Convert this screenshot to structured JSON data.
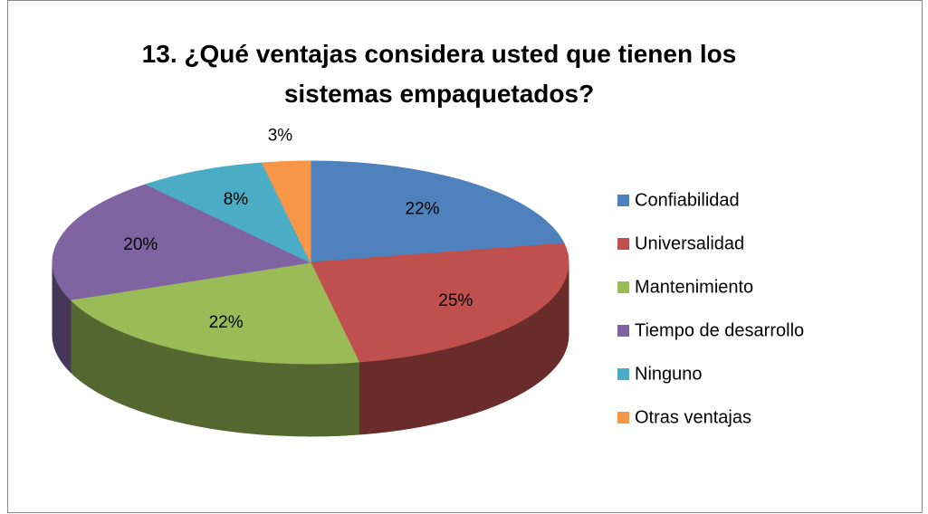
{
  "chart_data": {
    "type": "pie3d",
    "title": "13. ¿Qué ventajas considera usted que tienen los sistemas empaquetados?",
    "categories": [
      "Confiabilidad",
      "Universalidad",
      "Mantenimiento",
      "Tiempo de desarrollo",
      "Ninguno",
      "Otras ventajas"
    ],
    "values": [
      22,
      25,
      22,
      20,
      8,
      3
    ],
    "value_labels": [
      "22%",
      "25%",
      "22%",
      "20%",
      "8%",
      "3%"
    ],
    "colors": [
      "#4f81bd",
      "#c0504d",
      "#9bbb59",
      "#8064a2",
      "#4bacc6",
      "#f79646"
    ],
    "legend": "right"
  }
}
